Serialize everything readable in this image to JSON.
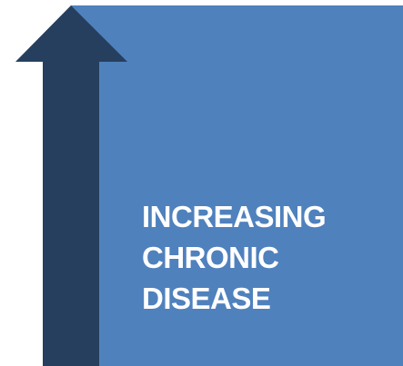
{
  "label": {
    "lines": [
      "INCREASING",
      "CHRONIC",
      "DISEASE"
    ]
  },
  "colors": {
    "panel": "#4f81bd",
    "arrow": "#263f5e",
    "text": "#ffffff",
    "background": "#ffffff"
  },
  "icons": {
    "arrow": "up-arrow-icon"
  }
}
